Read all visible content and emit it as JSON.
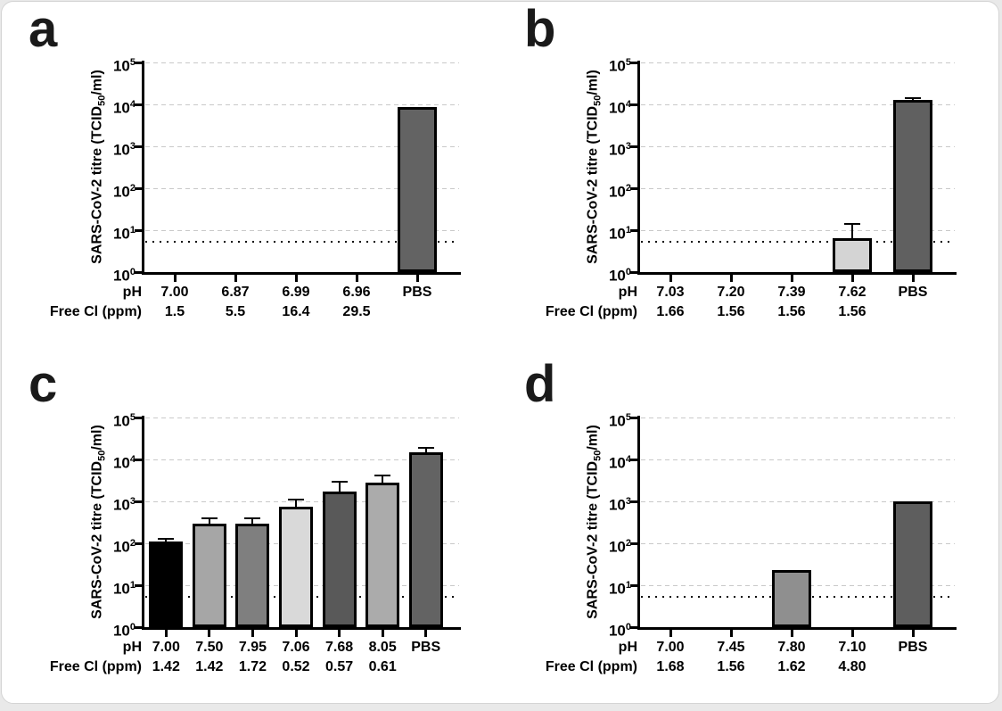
{
  "figure": {
    "background": "#ffffff",
    "card_border": "#d4d4d4",
    "gridline_color": "#c9c9c9",
    "axis_color": "#000000"
  },
  "axis": {
    "base": "10",
    "exponents": [
      "5",
      "4",
      "3",
      "2",
      "1",
      "0"
    ],
    "ylabel": {
      "pre": "SARS-CoV-2 titre (TCID",
      "sub": "50",
      "post": "/ml)"
    },
    "row_headers": {
      "ph": "pH",
      "cl": "Free Cl (ppm)"
    }
  },
  "chart_data": [
    {
      "panel": "a",
      "type": "bar",
      "yscale": "log",
      "ylim": [
        1,
        100000
      ],
      "detection_limit": 5.6,
      "bars": [
        {
          "ph": "7.00",
          "free_cl": "1.5",
          "value": null,
          "err_hi": null,
          "color": null
        },
        {
          "ph": "6.87",
          "free_cl": "5.5",
          "value": null,
          "err_hi": null,
          "color": null
        },
        {
          "ph": "6.99",
          "free_cl": "16.4",
          "value": null,
          "err_hi": null,
          "color": null
        },
        {
          "ph": "6.96",
          "free_cl": "29.5",
          "value": null,
          "err_hi": null,
          "color": null
        },
        {
          "ph": "PBS",
          "free_cl": "",
          "value": 8500,
          "err_hi": null,
          "color": "#636363"
        }
      ]
    },
    {
      "panel": "b",
      "type": "bar",
      "yscale": "log",
      "ylim": [
        1,
        100000
      ],
      "detection_limit": 5.6,
      "bars": [
        {
          "ph": "7.03",
          "free_cl": "1.66",
          "value": null,
          "err_hi": null,
          "color": null
        },
        {
          "ph": "7.20",
          "free_cl": "1.56",
          "value": null,
          "err_hi": null,
          "color": null
        },
        {
          "ph": "7.39",
          "free_cl": "1.56",
          "value": null,
          "err_hi": null,
          "color": null
        },
        {
          "ph": "7.62",
          "free_cl": "1.56",
          "value": 6.3,
          "err_hi": 14,
          "color": "#d4d4d4"
        },
        {
          "ph": "PBS",
          "free_cl": "",
          "value": 12500,
          "err_hi": 14000,
          "color": "#606060"
        }
      ]
    },
    {
      "panel": "c",
      "type": "bar",
      "yscale": "log",
      "ylim": [
        1,
        100000
      ],
      "detection_limit": 5.6,
      "bars": [
        {
          "ph": "7.00",
          "free_cl": "1.42",
          "value": 110,
          "err_hi": 128,
          "color": "#000000"
        },
        {
          "ph": "7.50",
          "free_cl": "1.42",
          "value": 300,
          "err_hi": 400,
          "color": "#a6a6a6"
        },
        {
          "ph": "7.95",
          "free_cl": "1.72",
          "value": 290,
          "err_hi": 400,
          "color": "#7f7f7f"
        },
        {
          "ph": "7.06",
          "free_cl": "0.52",
          "value": 760,
          "err_hi": 1100,
          "color": "#d9d9d9"
        },
        {
          "ph": "7.68",
          "free_cl": "0.57",
          "value": 1700,
          "err_hi": 2900,
          "color": "#595959"
        },
        {
          "ph": "8.05",
          "free_cl": "0.61",
          "value": 2750,
          "err_hi": 4100,
          "color": "#ababab"
        },
        {
          "ph": "PBS",
          "free_cl": "",
          "value": 15000,
          "err_hi": 19000,
          "color": "#636363"
        }
      ]
    },
    {
      "panel": "d",
      "type": "bar",
      "yscale": "log",
      "ylim": [
        1,
        100000
      ],
      "detection_limit": 5.6,
      "bars": [
        {
          "ph": "7.00",
          "free_cl": "1.68",
          "value": null,
          "err_hi": null,
          "color": null
        },
        {
          "ph": "7.45",
          "free_cl": "1.56",
          "value": null,
          "err_hi": null,
          "color": null
        },
        {
          "ph": "7.80",
          "free_cl": "1.62",
          "value": 23,
          "err_hi": null,
          "color": "#8f8f8f"
        },
        {
          "ph": "7.10",
          "free_cl": "4.80",
          "value": null,
          "err_hi": null,
          "color": null
        },
        {
          "ph": "PBS",
          "free_cl": "",
          "value": 1000,
          "err_hi": null,
          "color": "#5e5e5e"
        }
      ]
    }
  ]
}
